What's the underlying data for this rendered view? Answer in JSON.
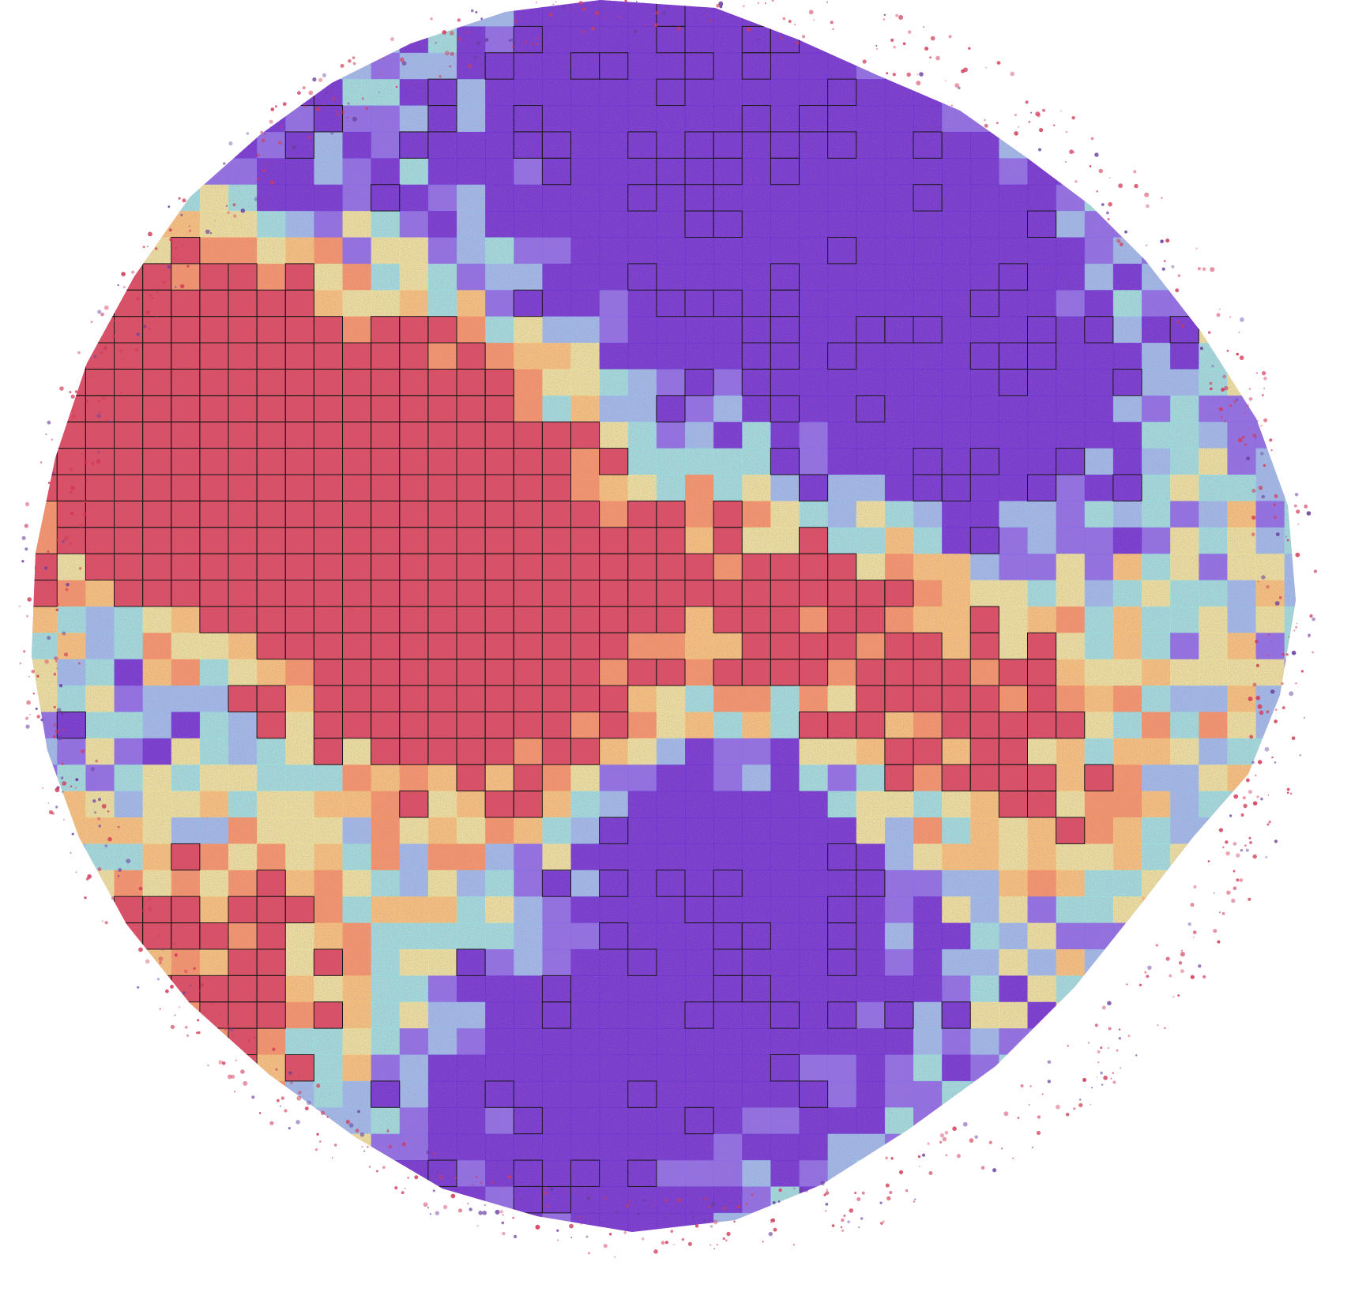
{
  "image": {
    "subject": "tissue-microarray-core-with-patch-heatmap-overlay",
    "background_color": "#ffffff",
    "stain_colors": {
      "eosin_pink": "#e48ab0",
      "hematoxylin_purple": "#6a3fa0",
      "debris_red": "#d23a58"
    },
    "heatmap": {
      "colormap": "spectral-rainbow",
      "colors": [
        "#5b2bd8",
        "#7b6cf0",
        "#8ec7f5",
        "#8ff0e6",
        "#eaf59a",
        "#f7cf72",
        "#f59a5c",
        "#e8505a"
      ],
      "grid_columns": 48,
      "grid_rows": 49,
      "high_score_tiles_outlined": true,
      "outline_color": "#1a1a1a"
    }
  }
}
